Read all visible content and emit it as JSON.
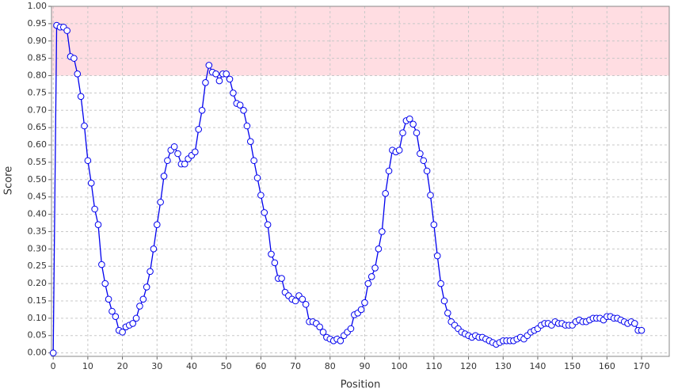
{
  "chart_data": {
    "type": "line",
    "xlabel": "Position",
    "ylabel": "Score",
    "x": [
      0,
      1,
      2,
      3,
      4,
      5,
      6,
      7,
      8,
      9,
      10,
      11,
      12,
      13,
      14,
      15,
      16,
      17,
      18,
      19,
      20,
      21,
      22,
      23,
      24,
      25,
      26,
      27,
      28,
      29,
      30,
      31,
      32,
      33,
      34,
      35,
      36,
      37,
      38,
      39,
      40,
      41,
      42,
      43,
      44,
      45,
      46,
      47,
      48,
      49,
      50,
      51,
      52,
      53,
      54,
      55,
      56,
      57,
      58,
      59,
      60,
      61,
      62,
      63,
      64,
      65,
      66,
      67,
      68,
      69,
      70,
      71,
      72,
      73,
      74,
      75,
      76,
      77,
      78,
      79,
      80,
      81,
      82,
      83,
      84,
      85,
      86,
      87,
      88,
      89,
      90,
      91,
      92,
      93,
      94,
      95,
      96,
      97,
      98,
      99,
      100,
      101,
      102,
      103,
      104,
      105,
      106,
      107,
      108,
      109,
      110,
      111,
      112,
      113,
      114,
      115,
      116,
      117,
      118,
      119,
      120,
      121,
      122,
      123,
      124,
      125,
      126,
      127,
      128,
      129,
      130,
      131,
      132,
      133,
      134,
      135,
      136,
      137,
      138,
      139,
      140,
      141,
      142,
      143,
      144,
      145,
      146,
      147,
      148,
      149,
      150,
      151,
      152,
      153,
      154,
      155,
      156,
      157,
      158,
      159,
      160,
      161,
      162,
      163,
      164,
      165,
      166,
      167,
      168,
      169,
      170
    ],
    "series": [
      {
        "name": "Score",
        "color": "#0000ee",
        "values": [
          0.0,
          0.945,
          0.94,
          0.94,
          0.93,
          0.855,
          0.85,
          0.805,
          0.74,
          0.655,
          0.555,
          0.49,
          0.415,
          0.37,
          0.255,
          0.2,
          0.155,
          0.12,
          0.105,
          0.065,
          0.06,
          0.075,
          0.08,
          0.085,
          0.1,
          0.135,
          0.155,
          0.19,
          0.235,
          0.3,
          0.37,
          0.435,
          0.51,
          0.555,
          0.585,
          0.595,
          0.575,
          0.545,
          0.545,
          0.56,
          0.57,
          0.58,
          0.645,
          0.7,
          0.78,
          0.83,
          0.81,
          0.805,
          0.785,
          0.805,
          0.805,
          0.79,
          0.75,
          0.72,
          0.715,
          0.7,
          0.655,
          0.61,
          0.555,
          0.505,
          0.455,
          0.405,
          0.37,
          0.285,
          0.26,
          0.215,
          0.215,
          0.175,
          0.165,
          0.155,
          0.15,
          0.165,
          0.155,
          0.14,
          0.09,
          0.09,
          0.085,
          0.075,
          0.06,
          0.045,
          0.04,
          0.035,
          0.04,
          0.035,
          0.05,
          0.06,
          0.07,
          0.11,
          0.115,
          0.125,
          0.145,
          0.2,
          0.22,
          0.245,
          0.3,
          0.35,
          0.46,
          0.525,
          0.585,
          0.58,
          0.585,
          0.635,
          0.67,
          0.675,
          0.66,
          0.635,
          0.575,
          0.555,
          0.525,
          0.455,
          0.37,
          0.28,
          0.2,
          0.15,
          0.115,
          0.09,
          0.08,
          0.07,
          0.06,
          0.055,
          0.05,
          0.045,
          0.05,
          0.045,
          0.045,
          0.04,
          0.035,
          0.03,
          0.025,
          0.03,
          0.035,
          0.035,
          0.035,
          0.035,
          0.04,
          0.045,
          0.04,
          0.05,
          0.06,
          0.065,
          0.07,
          0.08,
          0.085,
          0.085,
          0.08,
          0.09,
          0.085,
          0.085,
          0.08,
          0.08,
          0.08,
          0.09,
          0.095,
          0.09,
          0.09,
          0.095,
          0.1,
          0.1,
          0.1,
          0.095,
          0.105,
          0.105,
          0.1,
          0.1,
          0.095,
          0.09,
          0.085,
          0.09,
          0.085,
          0.065,
          0.065
        ]
      }
    ],
    "xlim": [
      -0.5,
      178
    ],
    "ylim": [
      -0.01,
      1
    ],
    "xticks": [
      0,
      10,
      20,
      30,
      40,
      50,
      60,
      70,
      80,
      90,
      100,
      110,
      120,
      130,
      140,
      150,
      160,
      170
    ],
    "yticks": [
      {
        "value": 0,
        "label": "0.00"
      },
      0.05,
      {
        "value": 0.1,
        "label": "0.10"
      },
      0.15,
      {
        "value": 0.2,
        "label": "0.20"
      },
      0.25,
      {
        "value": 0.3,
        "label": "0.30"
      },
      0.35,
      {
        "value": 0.4,
        "label": "0.40"
      },
      0.45,
      {
        "value": 0.5,
        "label": "0.50"
      },
      0.55,
      {
        "value": 0.6,
        "label": "0.60"
      },
      0.65,
      {
        "value": 0.7,
        "label": "0.70"
      },
      0.75,
      {
        "value": 0.8,
        "label": "0.80"
      },
      0.85,
      {
        "value": 0.9,
        "label": "0.90"
      },
      0.95,
      {
        "value": 1,
        "label": "1.00"
      }
    ],
    "highlight_range": [
      0.8,
      1
    ],
    "highlight_color": "#ffdde2",
    "grid": true
  }
}
